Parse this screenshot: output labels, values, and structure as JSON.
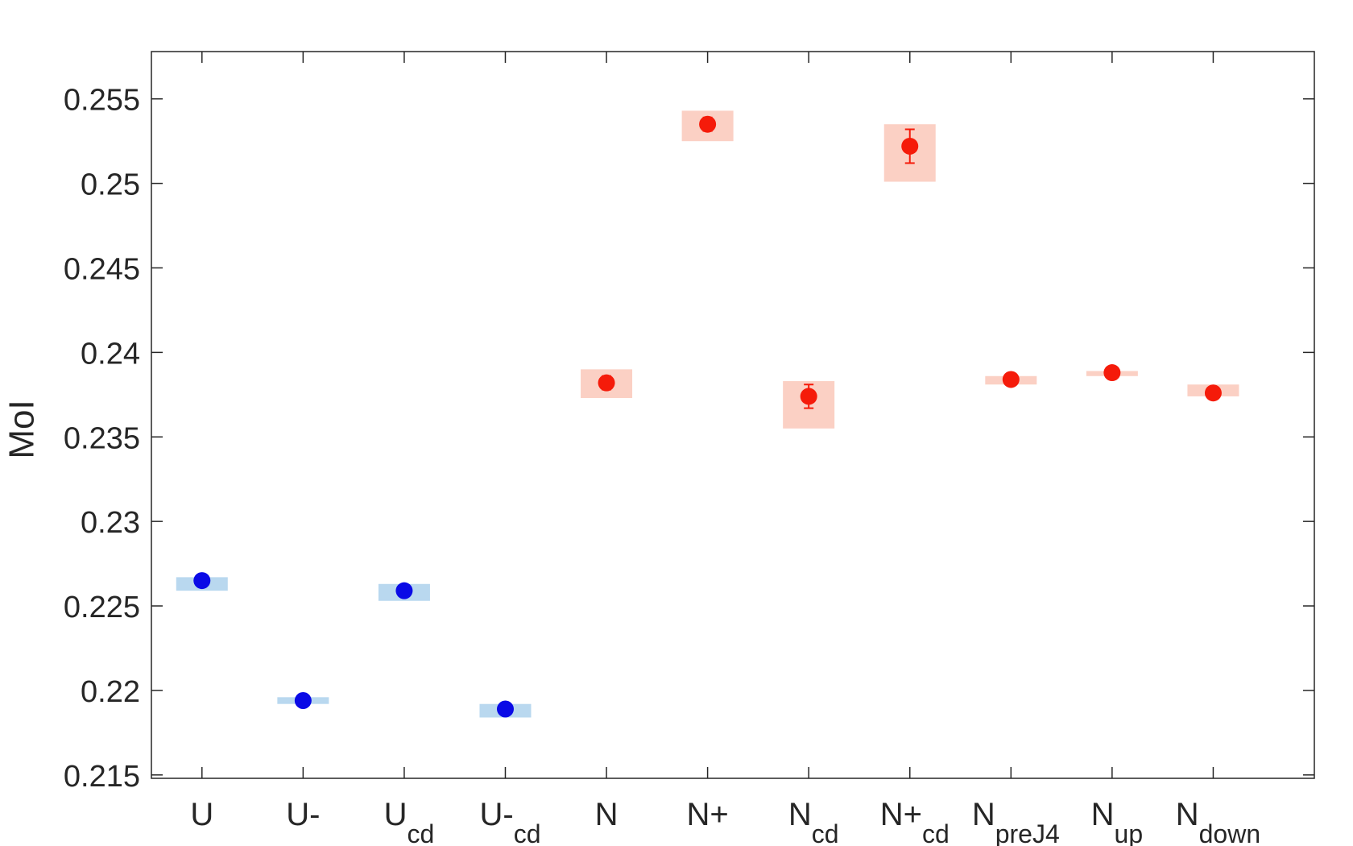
{
  "chart_data": {
    "type": "scatter",
    "title": "",
    "xlabel": "",
    "ylabel": "MoI",
    "ylim": [
      0.2148,
      0.2578
    ],
    "yticks": [
      0.215,
      0.22,
      0.225,
      0.23,
      0.235,
      0.24,
      0.245,
      0.25,
      0.255
    ],
    "ytick_labels": [
      "0.215",
      "0.22",
      "0.225",
      "0.23",
      "0.235",
      "0.24",
      "0.245",
      "0.25",
      "0.255"
    ],
    "grid": false,
    "categories": [
      {
        "main": "U",
        "sub": ""
      },
      {
        "main": "U-",
        "sub": ""
      },
      {
        "main": "U",
        "sub": "cd"
      },
      {
        "main": "U-",
        "sub": "cd"
      },
      {
        "main": "N",
        "sub": ""
      },
      {
        "main": "N+",
        "sub": ""
      },
      {
        "main": "N",
        "sub": "cd"
      },
      {
        "main": "N+",
        "sub": "cd"
      },
      {
        "main": "N",
        "sub": "preJ4"
      },
      {
        "main": "N",
        "sub": "up"
      },
      {
        "main": "N",
        "sub": "down"
      }
    ],
    "points": [
      {
        "value": 0.2265,
        "err": 0.0,
        "band": [
          0.2259,
          0.2267
        ],
        "color": "#0a0ae6",
        "band_color": "#b9d8ef"
      },
      {
        "value": 0.2194,
        "err": 0.0,
        "band": [
          0.2192,
          0.2196
        ],
        "color": "#0a0ae6",
        "band_color": "#b9d8ef"
      },
      {
        "value": 0.2259,
        "err": 0.0,
        "band": [
          0.2253,
          0.2263
        ],
        "color": "#0a0ae6",
        "band_color": "#b9d8ef"
      },
      {
        "value": 0.2189,
        "err": 0.0,
        "band": [
          0.2184,
          0.2192
        ],
        "color": "#0a0ae6",
        "band_color": "#b9d8ef"
      },
      {
        "value": 0.2382,
        "err": 0.0004,
        "band": [
          0.2373,
          0.239
        ],
        "color": "#f51b0a",
        "band_color": "#fbd0c4"
      },
      {
        "value": 0.2535,
        "err": 0.0004,
        "band": [
          0.2525,
          0.2543
        ],
        "color": "#f51b0a",
        "band_color": "#fbd0c4"
      },
      {
        "value": 0.2374,
        "err": 0.0007,
        "band": [
          0.2355,
          0.2383
        ],
        "color": "#f51b0a",
        "band_color": "#fbd0c4"
      },
      {
        "value": 0.2522,
        "err": 0.001,
        "band": [
          0.2501,
          0.2535
        ],
        "color": "#f51b0a",
        "band_color": "#fbd0c4"
      },
      {
        "value": 0.2384,
        "err": 0.0,
        "band": [
          0.2381,
          0.2386
        ],
        "color": "#f51b0a",
        "band_color": "#fbd0c4"
      },
      {
        "value": 0.2388,
        "err": 0.0,
        "band": [
          0.2386,
          0.2389
        ],
        "color": "#f51b0a",
        "band_color": "#fbd0c4"
      },
      {
        "value": 0.2376,
        "err": 0.0,
        "band": [
          0.2374,
          0.2381
        ],
        "color": "#f51b0a",
        "band_color": "#fbd0c4"
      }
    ]
  }
}
